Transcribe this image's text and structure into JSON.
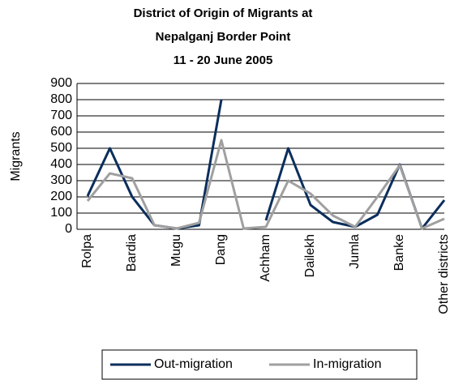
{
  "chart_data": {
    "type": "line",
    "title": [
      "District of Origin of Migrants at",
      "Nepalganj Border Point",
      "11 - 20 June 2005"
    ],
    "y_label": "Migrants",
    "categories": [
      "Rolpa",
      null,
      "Bardia",
      null,
      "Mugu",
      null,
      "Dang",
      null,
      "Achham",
      null,
      "Dailekh",
      null,
      "Jumla",
      null,
      "Banke",
      null,
      "Other districts"
    ],
    "series": [
      {
        "name": "Out-migration",
        "color": "#0b2e5c",
        "values": [
          205,
          500,
          200,
          25,
          5,
          25,
          800,
          null,
          55,
          500,
          150,
          45,
          15,
          90,
          400,
          5,
          180
        ]
      },
      {
        "name": "In-migration",
        "color": "#a0a0a0",
        "values": [
          175,
          345,
          315,
          25,
          5,
          40,
          550,
          5,
          15,
          300,
          220,
          85,
          15,
          200,
          395,
          5,
          65
        ]
      }
    ],
    "ylim": [
      0,
      900
    ],
    "yticks": [
      0,
      100,
      200,
      300,
      400,
      500,
      600,
      700,
      800,
      900
    ],
    "grid": true
  }
}
